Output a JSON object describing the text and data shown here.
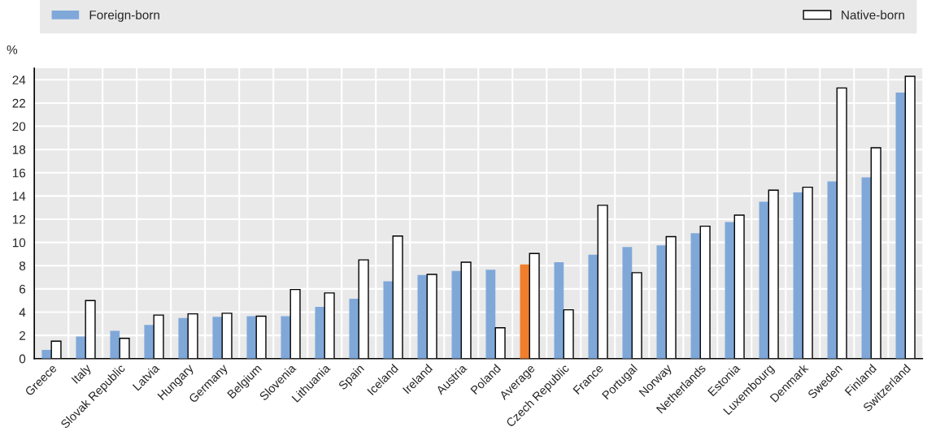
{
  "chart_data": {
    "type": "bar",
    "ylabel": "%",
    "categories": [
      "Greece",
      "Italy",
      "Slovak Republic",
      "Latvia",
      "Hungary",
      "Germany",
      "Belgium",
      "Slovenia",
      "Lithuania",
      "Spain",
      "Iceland",
      "Ireland",
      "Austria",
      "Poland",
      "Average",
      "Czech Republic",
      "France",
      "Portugal",
      "Norway",
      "Netherlands",
      "Estonia",
      "Luxembourg",
      "Denmark",
      "Sweden",
      "Finland",
      "Switzerland"
    ],
    "series": [
      {
        "name": "Foreign-born",
        "color": "#7fa8d9",
        "colors": [
          "#7fa8d9",
          "#7fa8d9",
          "#7fa8d9",
          "#7fa8d9",
          "#7fa8d9",
          "#7fa8d9",
          "#7fa8d9",
          "#7fa8d9",
          "#7fa8d9",
          "#7fa8d9",
          "#7fa8d9",
          "#7fa8d9",
          "#7fa8d9",
          "#7fa8d9",
          "#f07f2d",
          "#7fa8d9",
          "#7fa8d9",
          "#7fa8d9",
          "#7fa8d9",
          "#7fa8d9",
          "#7fa8d9",
          "#7fa8d9",
          "#7fa8d9",
          "#7fa8d9",
          "#7fa8d9",
          "#7fa8d9"
        ],
        "values": [
          0.75,
          1.9,
          2.4,
          2.9,
          3.5,
          3.6,
          3.65,
          3.65,
          4.45,
          5.15,
          6.65,
          7.2,
          7.55,
          7.65,
          8.1,
          8.3,
          8.95,
          9.6,
          9.75,
          10.8,
          11.75,
          13.5,
          14.3,
          15.25,
          15.6,
          22.9
        ]
      },
      {
        "name": "Native-born",
        "color": "#ffffff",
        "values": [
          1.5,
          5.0,
          1.75,
          3.75,
          3.85,
          3.9,
          3.65,
          5.95,
          5.65,
          8.5,
          10.55,
          7.25,
          8.3,
          2.65,
          9.05,
          4.2,
          13.2,
          7.4,
          10.5,
          11.4,
          12.35,
          14.5,
          14.75,
          23.3,
          18.15,
          24.3
        ]
      }
    ],
    "ylim": [
      0,
      25
    ],
    "yticks": [
      0,
      2,
      4,
      6,
      8,
      10,
      12,
      14,
      16,
      18,
      20,
      22,
      24
    ],
    "grid": true,
    "legend": "top"
  }
}
